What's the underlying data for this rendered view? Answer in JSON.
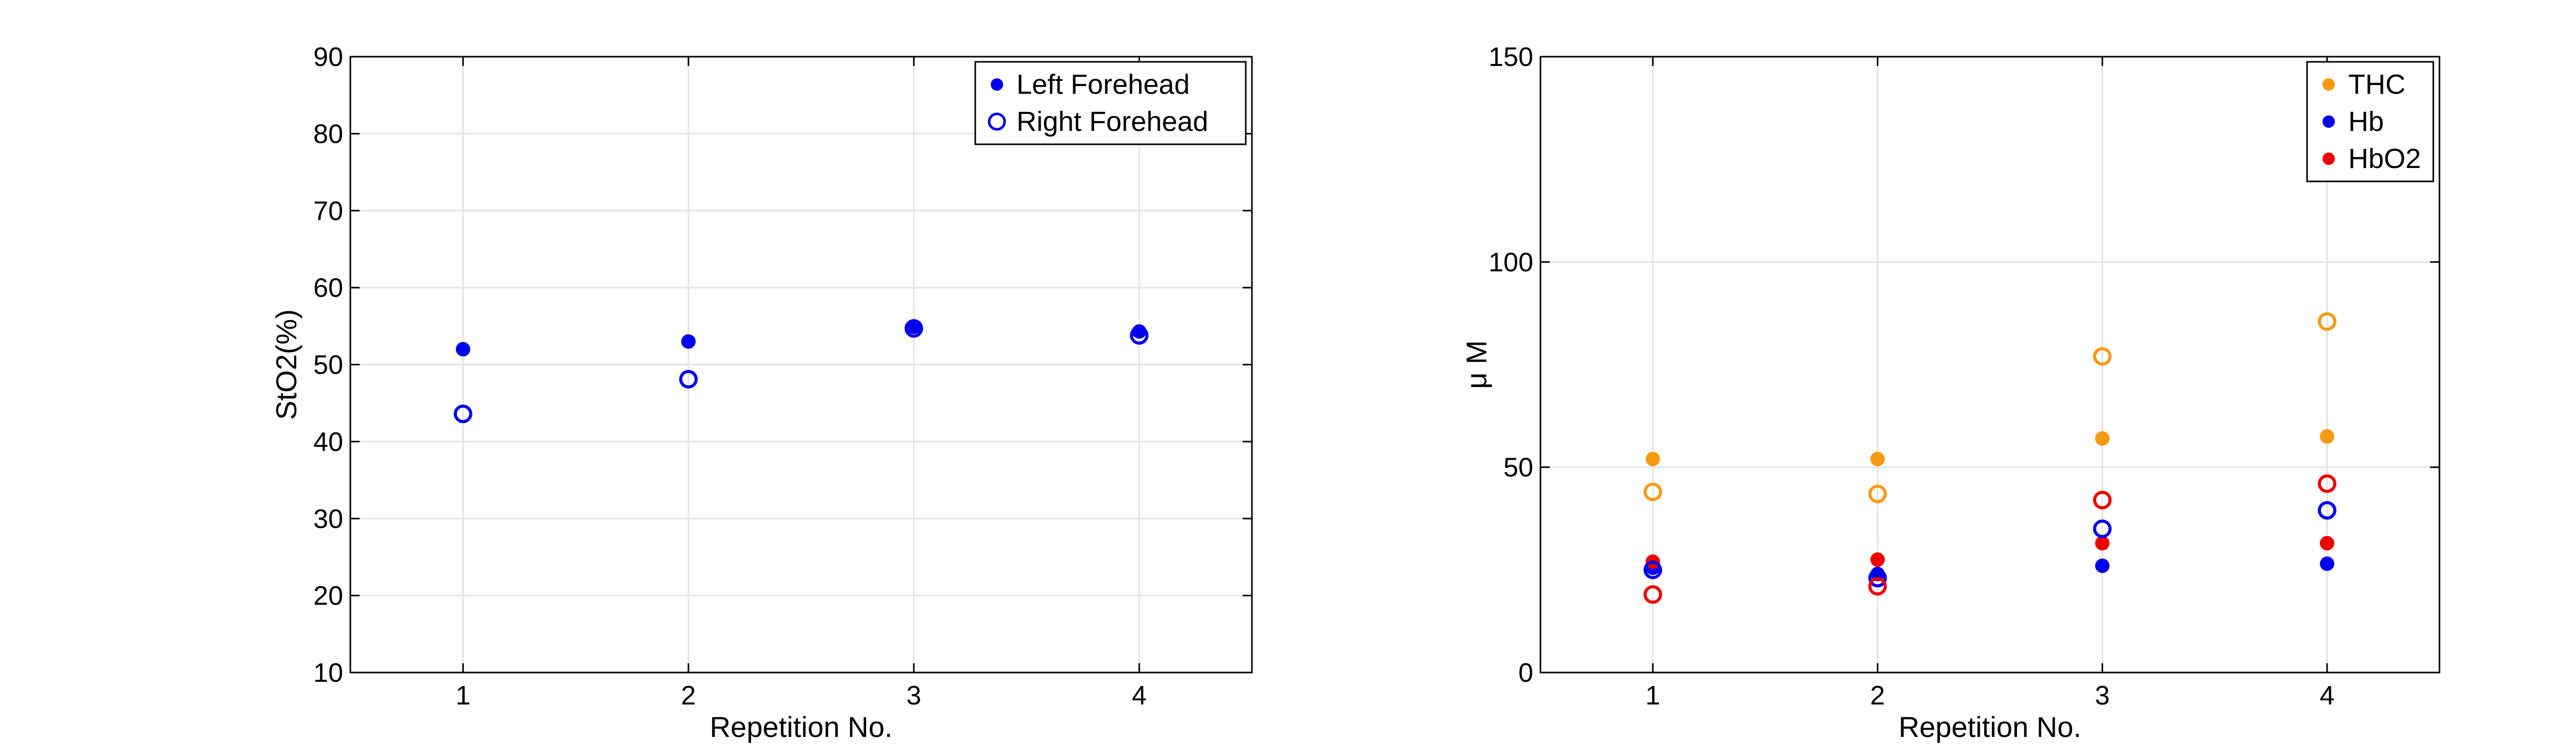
{
  "chart_data": [
    {
      "type": "scatter",
      "title": "",
      "xlabel": "Repetition No.",
      "ylabel": "StO2(%)",
      "xlim": [
        0.5,
        4.5
      ],
      "ylim": [
        10,
        90
      ],
      "xticks": [
        1,
        2,
        3,
        4
      ],
      "yticks": [
        10,
        20,
        30,
        40,
        50,
        60,
        70,
        80,
        90
      ],
      "grid": true,
      "legend_position": "top-right",
      "series": [
        {
          "name": "Left Forehead",
          "marker": "filled",
          "color": "#0000ee",
          "x": [
            1,
            2,
            3,
            4
          ],
          "y": [
            52,
            53,
            54.9,
            54.3
          ]
        },
        {
          "name": "Right Forehead",
          "marker": "open",
          "color": "#0000ee",
          "x": [
            1,
            2,
            3,
            4
          ],
          "y": [
            43.6,
            48.1,
            54.7,
            53.8
          ]
        }
      ]
    },
    {
      "type": "scatter",
      "title": "",
      "xlabel": "Repetition No.",
      "ylabel": "μ M",
      "xlim": [
        0.5,
        4.5
      ],
      "ylim": [
        0,
        150
      ],
      "xticks": [
        1,
        2,
        3,
        4
      ],
      "yticks": [
        0,
        50,
        100,
        150
      ],
      "grid": true,
      "legend_position": "top-right",
      "series": [
        {
          "name": "THC",
          "marker": "filled",
          "color": "#f59a0e",
          "x": [
            1,
            2,
            3,
            4
          ],
          "y": [
            52,
            52,
            57,
            57.5
          ]
        },
        {
          "name": "Hb",
          "marker": "filled",
          "color": "#0000ee",
          "x": [
            1,
            2,
            3,
            4
          ],
          "y": [
            25.5,
            24,
            26,
            26.5
          ]
        },
        {
          "name": "HbO2",
          "marker": "filled",
          "color": "#ee0000",
          "x": [
            1,
            2,
            3,
            4
          ],
          "y": [
            27,
            27.5,
            31.5,
            31.5
          ]
        },
        {
          "name": "",
          "marker": "open",
          "color": "#f59a0e",
          "x": [
            1,
            2,
            3,
            4
          ],
          "y": [
            44,
            43.5,
            77,
            85.5
          ]
        },
        {
          "name": "",
          "marker": "open",
          "color": "#0000ee",
          "x": [
            1,
            2,
            3,
            4
          ],
          "y": [
            25,
            23,
            35,
            39.5
          ]
        },
        {
          "name": "",
          "marker": "open",
          "color": "#ee0000",
          "x": [
            1,
            2,
            3,
            4
          ],
          "y": [
            19,
            21,
            42,
            46
          ]
        }
      ]
    }
  ]
}
